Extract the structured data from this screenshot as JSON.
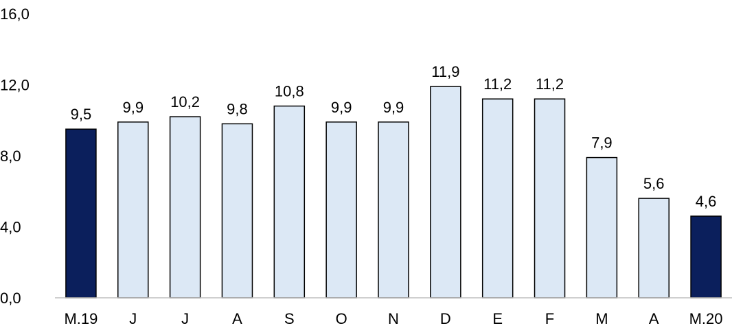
{
  "chart_data": {
    "type": "bar",
    "categories": [
      "M.19",
      "J",
      "J",
      "A",
      "S",
      "O",
      "N",
      "D",
      "E",
      "F",
      "M",
      "A",
      "M.20"
    ],
    "values": [
      9.5,
      9.9,
      10.2,
      9.8,
      10.8,
      9.9,
      9.9,
      11.9,
      11.2,
      11.2,
      7.9,
      5.6,
      4.6
    ],
    "value_labels": [
      "9,5",
      "9,9",
      "10,2",
      "9,8",
      "10,8",
      "9,9",
      "9,9",
      "11,9",
      "11,2",
      "11,2",
      "7,9",
      "5,6",
      "4,6"
    ],
    "highlighted": [
      true,
      false,
      false,
      false,
      false,
      false,
      false,
      false,
      false,
      false,
      false,
      false,
      true
    ],
    "ylim": [
      0,
      16
    ],
    "yticks": [
      "0,0",
      "4,0",
      "8,0",
      "12,0",
      "16,0"
    ],
    "grid": false,
    "legend": "none",
    "title": "",
    "xlabel": "",
    "ylabel": "",
    "colors": {
      "highlight": "#0b1f5c",
      "normal": "#dce8f5",
      "bar_border": "#000000",
      "axis": "#bfbfbf"
    }
  }
}
